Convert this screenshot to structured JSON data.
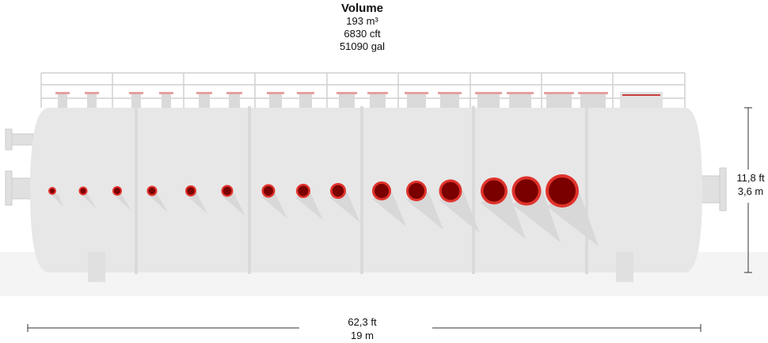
{
  "volume": {
    "title": "Volume",
    "m3": "193 m³",
    "cft": "6830 cft",
    "gal": "51090 gal"
  },
  "dimensions": {
    "length_ft": "62,3 ft",
    "length_m": "19 m",
    "height_ft": "11,8 ft",
    "height_m": "3,6 m"
  },
  "colors": {
    "tank": "#e7e7e7",
    "tank_shadow": "#dcdcdc",
    "rail": "#d4d4d4",
    "opening_ring": "#e0322b",
    "opening_core": "#7a0000",
    "dimension_line": "#333333"
  },
  "openings": {
    "count": 15
  }
}
